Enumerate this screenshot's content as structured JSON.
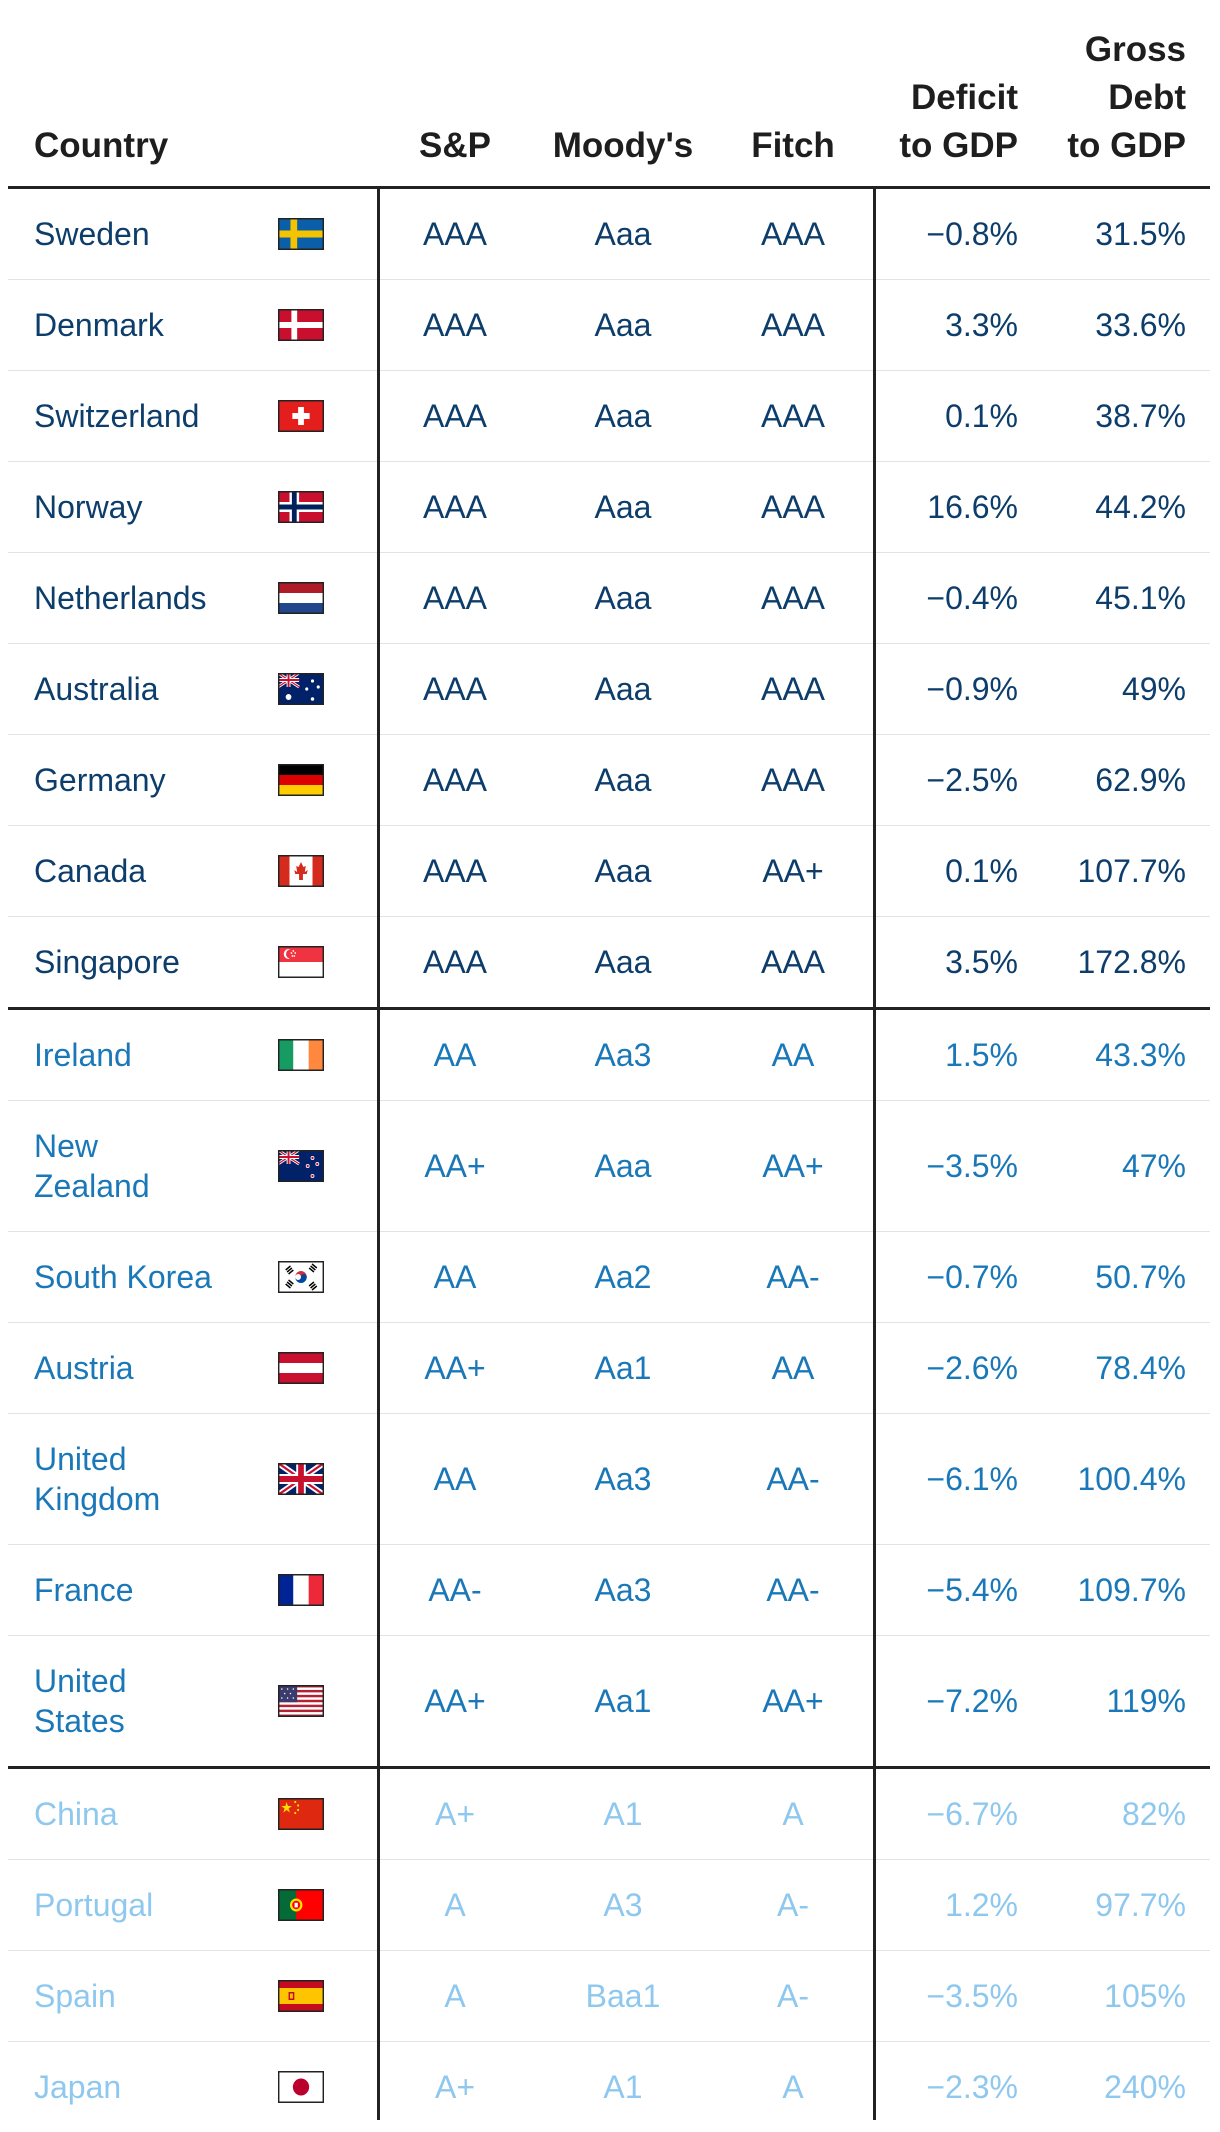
{
  "headers": {
    "country": "Country",
    "sp": "S&P",
    "moodys": "Moody's",
    "fitch": "Fitch",
    "deficit": [
      "Deficit",
      "to GDP"
    ],
    "debt": [
      "Gross",
      "Debt",
      "to GDP"
    ]
  },
  "colors": {
    "tier_aaa": "#0d3d6b",
    "tier_aa": "#1a78b8",
    "tier_a": "#8fc8ee",
    "rule": "#222222",
    "row_separator": "#e3e3e3"
  },
  "groups": [
    {
      "tier": 0,
      "rows": [
        {
          "country": "Sweden",
          "flag": "sweden-flag-icon",
          "sp": "AAA",
          "moodys": "Aaa",
          "fitch": "AAA",
          "deficit": "−0.8%",
          "debt": "31.5%"
        },
        {
          "country": "Denmark",
          "flag": "denmark-flag-icon",
          "sp": "AAA",
          "moodys": "Aaa",
          "fitch": "AAA",
          "deficit": "3.3%",
          "debt": "33.6%"
        },
        {
          "country": "Switzerland",
          "flag": "switzerland-flag-icon",
          "sp": "AAA",
          "moodys": "Aaa",
          "fitch": "AAA",
          "deficit": "0.1%",
          "debt": "38.7%"
        },
        {
          "country": "Norway",
          "flag": "norway-flag-icon",
          "sp": "AAA",
          "moodys": "Aaa",
          "fitch": "AAA",
          "deficit": "16.6%",
          "debt": "44.2%"
        },
        {
          "country": "Netherlands",
          "flag": "netherlands-flag-icon",
          "sp": "AAA",
          "moodys": "Aaa",
          "fitch": "AAA",
          "deficit": "−0.4%",
          "debt": "45.1%"
        },
        {
          "country": "Australia",
          "flag": "australia-flag-icon",
          "sp": "AAA",
          "moodys": "Aaa",
          "fitch": "AAA",
          "deficit": "−0.9%",
          "debt": "49%"
        },
        {
          "country": "Germany",
          "flag": "germany-flag-icon",
          "sp": "AAA",
          "moodys": "Aaa",
          "fitch": "AAA",
          "deficit": "−2.5%",
          "debt": "62.9%"
        },
        {
          "country": "Canada",
          "flag": "canada-flag-icon",
          "sp": "AAA",
          "moodys": "Aaa",
          "fitch": "AA+",
          "deficit": "0.1%",
          "debt": "107.7%"
        },
        {
          "country": "Singapore",
          "flag": "singapore-flag-icon",
          "sp": "AAA",
          "moodys": "Aaa",
          "fitch": "AAA",
          "deficit": "3.5%",
          "debt": "172.8%"
        }
      ]
    },
    {
      "tier": 1,
      "rows": [
        {
          "country": "Ireland",
          "flag": "ireland-flag-icon",
          "sp": "AA",
          "moodys": "Aa3",
          "fitch": "AA",
          "deficit": "1.5%",
          "debt": "43.3%"
        },
        {
          "country": "New Zealand",
          "flag": "new-zealand-flag-icon",
          "sp": "AA+",
          "moodys": "Aaa",
          "fitch": "AA+",
          "deficit": "−3.5%",
          "debt": "47%"
        },
        {
          "country": "South Korea",
          "flag": "south-korea-flag-icon",
          "sp": "AA",
          "moodys": "Aa2",
          "fitch": "AA-",
          "deficit": "−0.7%",
          "debt": "50.7%"
        },
        {
          "country": "Austria",
          "flag": "austria-flag-icon",
          "sp": "AA+",
          "moodys": "Aa1",
          "fitch": "AA",
          "deficit": "−2.6%",
          "debt": "78.4%"
        },
        {
          "country": "United Kingdom",
          "flag": "united-kingdom-flag-icon",
          "sp": "AA",
          "moodys": "Aa3",
          "fitch": "AA-",
          "deficit": "−6.1%",
          "debt": "100.4%"
        },
        {
          "country": "France",
          "flag": "france-flag-icon",
          "sp": "AA-",
          "moodys": "Aa3",
          "fitch": "AA-",
          "deficit": "−5.4%",
          "debt": "109.7%"
        },
        {
          "country": "United States",
          "flag": "united-states-flag-icon",
          "sp": "AA+",
          "moodys": "Aa1",
          "fitch": "AA+",
          "deficit": "−7.2%",
          "debt": "119%"
        }
      ]
    },
    {
      "tier": 2,
      "rows": [
        {
          "country": "China",
          "flag": "china-flag-icon",
          "sp": "A+",
          "moodys": "A1",
          "fitch": "A",
          "deficit": "−6.7%",
          "debt": "82%"
        },
        {
          "country": "Portugal",
          "flag": "portugal-flag-icon",
          "sp": "A",
          "moodys": "A3",
          "fitch": "A-",
          "deficit": "1.2%",
          "debt": "97.7%"
        },
        {
          "country": "Spain",
          "flag": "spain-flag-icon",
          "sp": "A",
          "moodys": "Baa1",
          "fitch": "A-",
          "deficit": "−3.5%",
          "debt": "105%"
        },
        {
          "country": "Japan",
          "flag": "japan-flag-icon",
          "sp": "A+",
          "moodys": "A1",
          "fitch": "A",
          "deficit": "−2.3%",
          "debt": "240%"
        }
      ]
    }
  ]
}
